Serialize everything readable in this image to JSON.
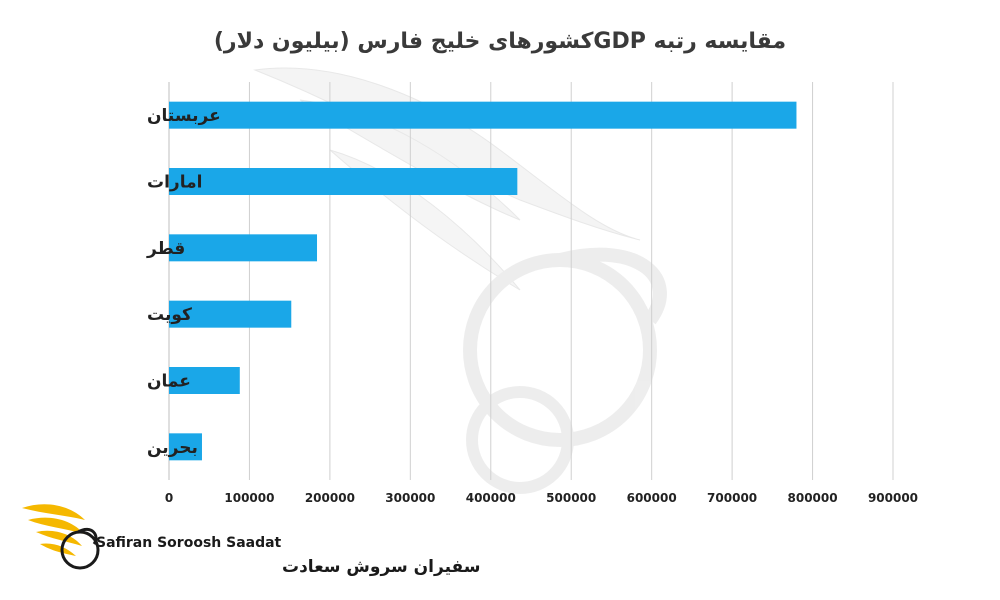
{
  "chart_data": {
    "type": "bar",
    "orientation": "horizontal",
    "title": "مقایسه رتبه  GDPکشورهای خلیج فارس (بیلیون دلار)",
    "categories": [
      "عربستان",
      "امارات",
      "قطر",
      "کویت",
      "عمان",
      "بحرین"
    ],
    "values": [
      780000,
      433000,
      184000,
      152000,
      88000,
      41000
    ],
    "xlim": [
      0,
      900000
    ],
    "xticks": [
      0,
      100000,
      200000,
      300000,
      400000,
      500000,
      600000,
      700000,
      800000,
      900000
    ],
    "xtick_labels": [
      "0",
      "100000",
      "200000",
      "300000",
      "400000",
      "500000",
      "600000",
      "700000",
      "800000",
      "900000"
    ],
    "grid": "vertical",
    "legend": "none",
    "bar_color": "#1aa7e8",
    "grid_color": "#d0d0d0",
    "axis_color": "#bfbfbf"
  },
  "logo": {
    "name_en": "Safiran Soroosh Saadat",
    "name_fa": "سفیران سروش سعادت",
    "icon": "swan-wings-logo-icon",
    "accent_color": "#f5b800"
  },
  "watermark": {
    "icon": "swan-watermark-icon"
  }
}
